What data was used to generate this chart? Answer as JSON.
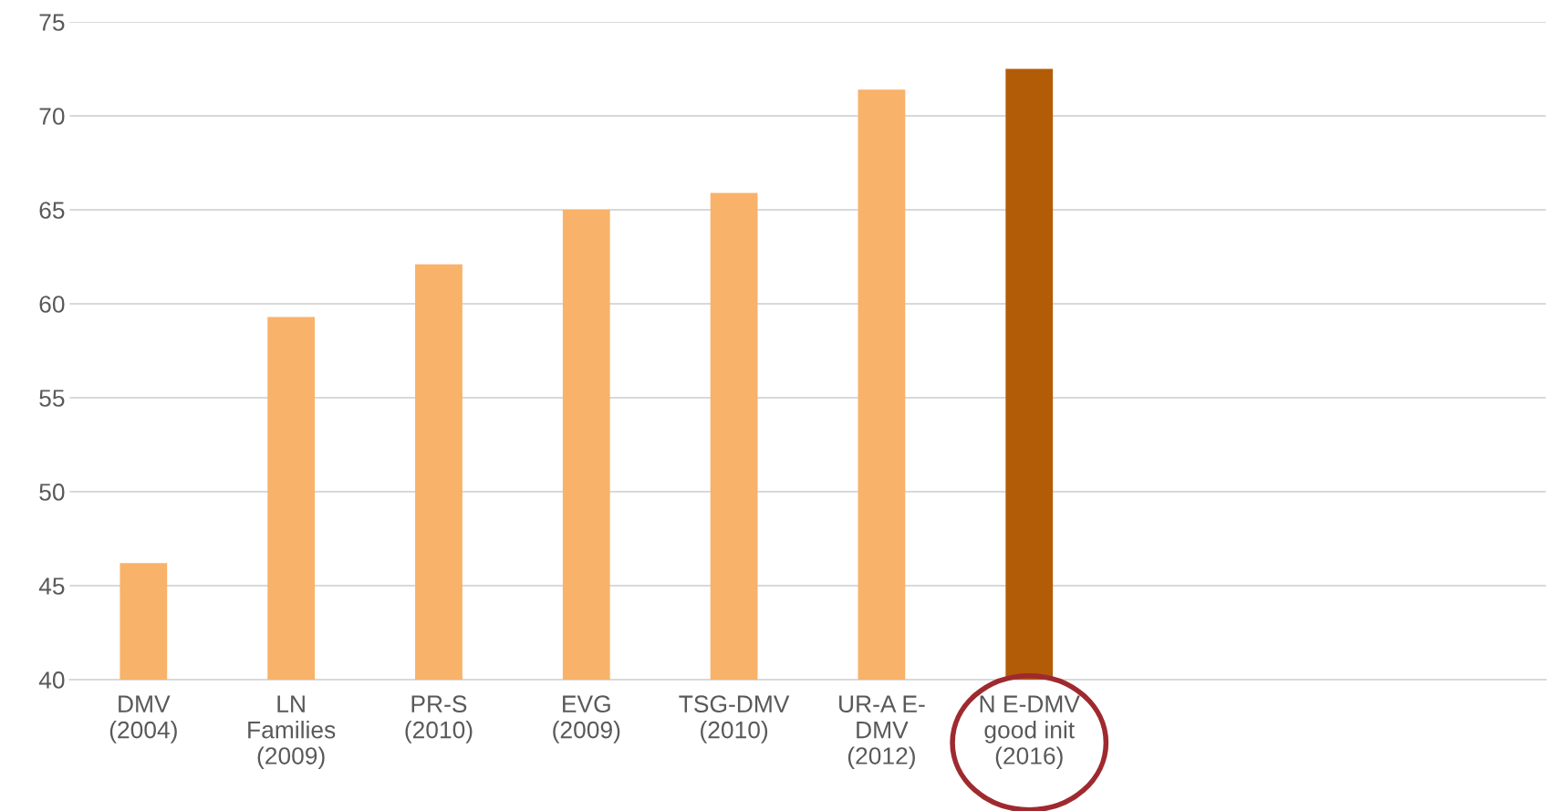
{
  "chart_data": {
    "type": "bar",
    "categories": [
      "DMV\n(2004)",
      "LN\nFamilies\n(2009)",
      "PR-S\n(2010)",
      "EVG\n(2009)",
      "TSG-DMV\n(2010)",
      "UR-A E-\nDMV\n(2012)",
      "N E-DMV\ngood init\n(2016)",
      null,
      null,
      null
    ],
    "values": [
      46.2,
      59.3,
      62.1,
      65.0,
      65.9,
      71.4,
      72.5,
      null,
      null,
      null
    ],
    "colors": [
      "#f8b26a",
      "#f8b26a",
      "#f8b26a",
      "#f8b26a",
      "#f8b26a",
      "#f8b26a",
      "#b35c07",
      "#f8b26a",
      "#f8b26a",
      "#f8b26a"
    ],
    "ylim": [
      40,
      75
    ],
    "yticks": [
      40,
      45,
      50,
      55,
      60,
      65,
      70,
      75
    ],
    "grid": "y",
    "legend": false
  }
}
